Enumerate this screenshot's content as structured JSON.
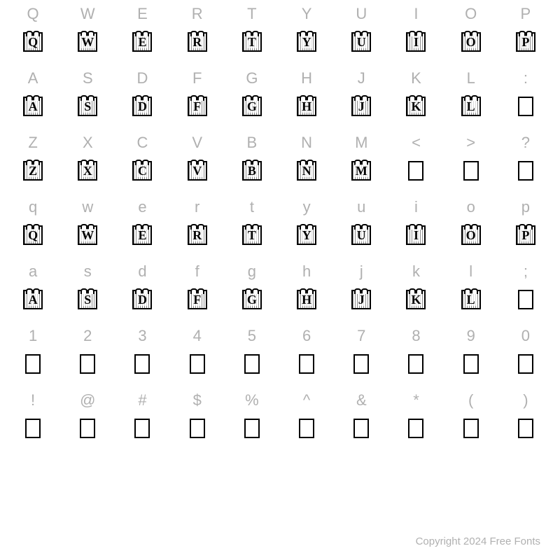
{
  "grid": {
    "columns": 10,
    "label_color": "#b0b0b0",
    "label_fontsize": 22,
    "glyph_border_color": "#000000",
    "glyph_fill_color": "#ffffff",
    "background_color": "#ffffff",
    "rows": [
      {
        "labels": [
          "Q",
          "W",
          "E",
          "R",
          "T",
          "Y",
          "U",
          "I",
          "O",
          "P"
        ],
        "glyphs": [
          {
            "type": "decorative",
            "letter": "Q"
          },
          {
            "type": "decorative",
            "letter": "W"
          },
          {
            "type": "decorative",
            "letter": "E"
          },
          {
            "type": "decorative",
            "letter": "R"
          },
          {
            "type": "decorative",
            "letter": "T"
          },
          {
            "type": "decorative",
            "letter": "Y"
          },
          {
            "type": "decorative",
            "letter": "U"
          },
          {
            "type": "decorative",
            "letter": "I"
          },
          {
            "type": "decorative",
            "letter": "O"
          },
          {
            "type": "decorative",
            "letter": "P"
          }
        ]
      },
      {
        "labels": [
          "A",
          "S",
          "D",
          "F",
          "G",
          "H",
          "J",
          "K",
          "L",
          ":"
        ],
        "glyphs": [
          {
            "type": "decorative",
            "letter": "A"
          },
          {
            "type": "decorative",
            "letter": "S"
          },
          {
            "type": "decorative",
            "letter": "D"
          },
          {
            "type": "decorative",
            "letter": "F"
          },
          {
            "type": "decorative",
            "letter": "G"
          },
          {
            "type": "decorative",
            "letter": "H"
          },
          {
            "type": "decorative",
            "letter": "J"
          },
          {
            "type": "decorative",
            "letter": "K"
          },
          {
            "type": "decorative",
            "letter": "L"
          },
          {
            "type": "empty"
          }
        ]
      },
      {
        "labels": [
          "Z",
          "X",
          "C",
          "V",
          "B",
          "N",
          "M",
          "<",
          ">",
          "?"
        ],
        "glyphs": [
          {
            "type": "decorative",
            "letter": "Z"
          },
          {
            "type": "decorative",
            "letter": "X"
          },
          {
            "type": "decorative",
            "letter": "C"
          },
          {
            "type": "decorative",
            "letter": "V"
          },
          {
            "type": "decorative",
            "letter": "B"
          },
          {
            "type": "decorative",
            "letter": "N"
          },
          {
            "type": "decorative",
            "letter": "M"
          },
          {
            "type": "empty"
          },
          {
            "type": "empty"
          },
          {
            "type": "empty"
          }
        ]
      },
      {
        "labels": [
          "q",
          "w",
          "e",
          "r",
          "t",
          "y",
          "u",
          "i",
          "o",
          "p"
        ],
        "glyphs": [
          {
            "type": "decorative",
            "letter": "Q"
          },
          {
            "type": "decorative",
            "letter": "W"
          },
          {
            "type": "decorative",
            "letter": "E"
          },
          {
            "type": "decorative",
            "letter": "R"
          },
          {
            "type": "decorative",
            "letter": "T"
          },
          {
            "type": "decorative",
            "letter": "Y"
          },
          {
            "type": "decorative",
            "letter": "U"
          },
          {
            "type": "decorative",
            "letter": "I"
          },
          {
            "type": "decorative",
            "letter": "O"
          },
          {
            "type": "decorative",
            "letter": "P"
          }
        ]
      },
      {
        "labels": [
          "a",
          "s",
          "d",
          "f",
          "g",
          "h",
          "j",
          "k",
          "l",
          ";"
        ],
        "glyphs": [
          {
            "type": "decorative",
            "letter": "A"
          },
          {
            "type": "decorative",
            "letter": "S"
          },
          {
            "type": "decorative",
            "letter": "D"
          },
          {
            "type": "decorative",
            "letter": "F"
          },
          {
            "type": "decorative",
            "letter": "G"
          },
          {
            "type": "decorative",
            "letter": "H"
          },
          {
            "type": "decorative",
            "letter": "J"
          },
          {
            "type": "decorative",
            "letter": "K"
          },
          {
            "type": "decorative",
            "letter": "L"
          },
          {
            "type": "empty"
          }
        ]
      },
      {
        "labels": [
          "1",
          "2",
          "3",
          "4",
          "5",
          "6",
          "7",
          "8",
          "9",
          "0"
        ],
        "glyphs": [
          {
            "type": "empty"
          },
          {
            "type": "empty"
          },
          {
            "type": "empty"
          },
          {
            "type": "empty"
          },
          {
            "type": "empty"
          },
          {
            "type": "empty"
          },
          {
            "type": "empty"
          },
          {
            "type": "empty"
          },
          {
            "type": "empty"
          },
          {
            "type": "empty"
          }
        ]
      },
      {
        "labels": [
          "!",
          "@",
          "#",
          "$",
          "%",
          "^",
          "&",
          "*",
          "(",
          ")"
        ],
        "glyphs": [
          {
            "type": "empty"
          },
          {
            "type": "empty"
          },
          {
            "type": "empty"
          },
          {
            "type": "empty"
          },
          {
            "type": "empty"
          },
          {
            "type": "empty"
          },
          {
            "type": "empty"
          },
          {
            "type": "empty"
          },
          {
            "type": "empty"
          },
          {
            "type": "empty"
          }
        ]
      }
    ]
  },
  "footer": {
    "text": "Copyright 2024 Free Fonts",
    "color": "#b0b0b0",
    "fontsize": 15
  }
}
